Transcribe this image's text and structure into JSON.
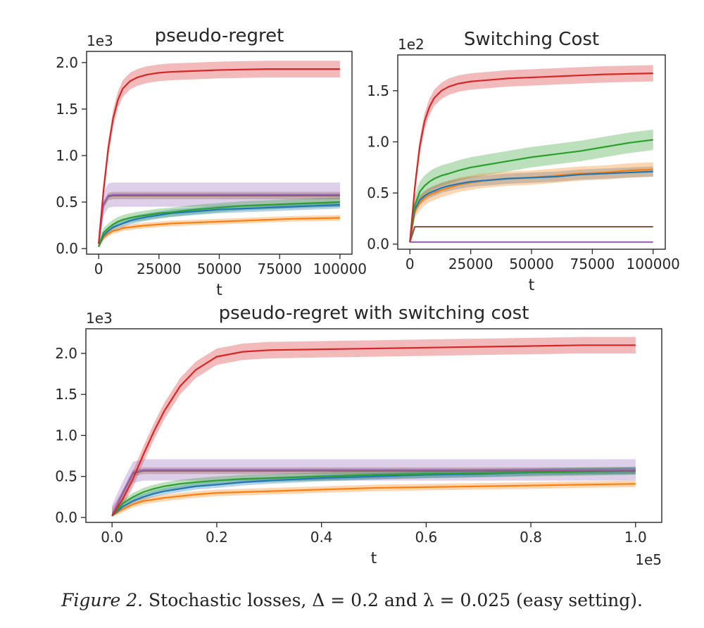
{
  "caption": {
    "figure_label": "Figure 2.",
    "text": "Stochastic losses, Δ = 0.2 and λ = 0.025 (easy setting)."
  },
  "colors": {
    "red": "#d62728",
    "purple": "#9467bd",
    "green": "#2ca02c",
    "blue": "#1f77b4",
    "orange": "#ff7f0e",
    "brown": "#8c564b",
    "frame": "#262626"
  },
  "chart_data": [
    {
      "id": "pseudo-regret",
      "type": "line",
      "title": "pseudo-regret",
      "xlabel": "t",
      "ylabel": "",
      "offset_text": "1e3",
      "xlim": [
        -5000,
        105000
      ],
      "ylim": [
        -0.06,
        2.12
      ],
      "xticks": [
        0,
        25000,
        50000,
        75000,
        100000
      ],
      "xtick_labels": [
        "0",
        "25000",
        "50000",
        "75000",
        "100000"
      ],
      "yticks": [
        0.0,
        0.5,
        1.0,
        1.5,
        2.0
      ],
      "ytick_labels": [
        "0.0",
        "0.5",
        "1.0",
        "1.5",
        "2.0"
      ],
      "grid": false,
      "x": [
        0,
        2000,
        4000,
        6000,
        8000,
        10000,
        13000,
        16000,
        20000,
        25000,
        30000,
        40000,
        50000,
        60000,
        70000,
        80000,
        90000,
        100000
      ],
      "series": [
        {
          "name": "red",
          "color": "red",
          "values": [
            0.05,
            0.62,
            1.08,
            1.4,
            1.6,
            1.72,
            1.8,
            1.84,
            1.87,
            1.89,
            1.9,
            1.91,
            1.92,
            1.925,
            1.93,
            1.93,
            1.93,
            1.93
          ],
          "band": 0.09
        },
        {
          "name": "purple",
          "color": "purple",
          "values": [
            0.05,
            0.48,
            0.57,
            0.58,
            0.58,
            0.58,
            0.58,
            0.58,
            0.58,
            0.58,
            0.58,
            0.58,
            0.58,
            0.58,
            0.58,
            0.58,
            0.58,
            0.58
          ],
          "band": 0.13
        },
        {
          "name": "brown",
          "color": "brown",
          "values": [
            0.05,
            0.47,
            0.56,
            0.57,
            0.57,
            0.57,
            0.57,
            0.57,
            0.57,
            0.57,
            0.57,
            0.57,
            0.57,
            0.57,
            0.57,
            0.57,
            0.57,
            0.57
          ],
          "band": 0.04
        },
        {
          "name": "green",
          "color": "green",
          "values": [
            0.02,
            0.17,
            0.22,
            0.26,
            0.29,
            0.31,
            0.33,
            0.345,
            0.36,
            0.38,
            0.39,
            0.42,
            0.44,
            0.46,
            0.47,
            0.48,
            0.49,
            0.5
          ],
          "band": 0.05
        },
        {
          "name": "blue",
          "color": "blue",
          "values": [
            0.02,
            0.14,
            0.19,
            0.23,
            0.25,
            0.27,
            0.3,
            0.32,
            0.34,
            0.36,
            0.38,
            0.4,
            0.42,
            0.43,
            0.44,
            0.45,
            0.46,
            0.47
          ],
          "band": 0.04
        },
        {
          "name": "orange",
          "color": "orange",
          "values": [
            0.02,
            0.12,
            0.16,
            0.19,
            0.2,
            0.22,
            0.23,
            0.24,
            0.25,
            0.26,
            0.27,
            0.28,
            0.29,
            0.3,
            0.31,
            0.32,
            0.325,
            0.33
          ],
          "band": 0.03
        }
      ]
    },
    {
      "id": "switching-cost",
      "type": "line",
      "title": "Switching Cost",
      "xlabel": "t",
      "ylabel": "",
      "offset_text": "1e2",
      "xlim": [
        -5000,
        105000
      ],
      "ylim": [
        -0.05,
        1.85
      ],
      "xticks": [
        0,
        25000,
        50000,
        75000,
        100000
      ],
      "xtick_labels": [
        "0",
        "25000",
        "50000",
        "75000",
        "100000"
      ],
      "yticks": [
        0.0,
        0.5,
        1.0,
        1.5
      ],
      "ytick_labels": [
        "0.0",
        "0.5",
        "1.0",
        "1.5"
      ],
      "grid": false,
      "x": [
        0,
        2000,
        4000,
        6000,
        8000,
        10000,
        13000,
        16000,
        20000,
        25000,
        30000,
        40000,
        50000,
        60000,
        70000,
        80000,
        90000,
        100000
      ],
      "series": [
        {
          "name": "red",
          "color": "red",
          "values": [
            0.02,
            0.55,
            0.95,
            1.2,
            1.34,
            1.43,
            1.5,
            1.54,
            1.57,
            1.59,
            1.6,
            1.62,
            1.63,
            1.64,
            1.65,
            1.66,
            1.665,
            1.67
          ],
          "band": 0.08
        },
        {
          "name": "green",
          "color": "green",
          "values": [
            0.02,
            0.38,
            0.51,
            0.57,
            0.61,
            0.64,
            0.67,
            0.69,
            0.72,
            0.75,
            0.77,
            0.81,
            0.85,
            0.88,
            0.91,
            0.95,
            0.99,
            1.02
          ],
          "band": 0.1
        },
        {
          "name": "blue",
          "color": "blue",
          "values": [
            0.02,
            0.34,
            0.43,
            0.47,
            0.5,
            0.52,
            0.55,
            0.57,
            0.59,
            0.61,
            0.62,
            0.64,
            0.65,
            0.66,
            0.68,
            0.69,
            0.7,
            0.71
          ],
          "band": 0.05
        },
        {
          "name": "orange",
          "color": "orange",
          "values": [
            0.02,
            0.32,
            0.4,
            0.45,
            0.48,
            0.5,
            0.53,
            0.55,
            0.58,
            0.6,
            0.62,
            0.64,
            0.65,
            0.67,
            0.69,
            0.7,
            0.72,
            0.73
          ],
          "band": 0.07
        },
        {
          "name": "brown",
          "color": "brown",
          "values": [
            0.02,
            0.17,
            0.17,
            0.17,
            0.17,
            0.17,
            0.17,
            0.17,
            0.17,
            0.17,
            0.17,
            0.17,
            0.17,
            0.17,
            0.17,
            0.17,
            0.17,
            0.17
          ],
          "band": 0.0
        },
        {
          "name": "purple",
          "color": "purple",
          "values": [
            0.02,
            0.02,
            0.02,
            0.02,
            0.02,
            0.02,
            0.02,
            0.02,
            0.02,
            0.02,
            0.02,
            0.02,
            0.02,
            0.02,
            0.02,
            0.02,
            0.02,
            0.02
          ],
          "band": 0.0
        }
      ]
    },
    {
      "id": "pseudo-regret-switching",
      "type": "line",
      "title": "pseudo-regret with switching cost",
      "xlabel": "t",
      "ylabel": "",
      "offset_text": "1e3",
      "x_offset_text": "1e5",
      "xlim": [
        -0.05,
        1.05
      ],
      "ylim": [
        -0.06,
        2.3
      ],
      "xticks": [
        0.0,
        0.2,
        0.4,
        0.6,
        0.8,
        1.0
      ],
      "xtick_labels": [
        "0.0",
        "0.2",
        "0.4",
        "0.6",
        "0.8",
        "1.0"
      ],
      "yticks": [
        0.0,
        0.5,
        1.0,
        1.5,
        2.0
      ],
      "ytick_labels": [
        "0.0",
        "0.5",
        "1.0",
        "1.5",
        "2.0"
      ],
      "grid": false,
      "x": [
        0,
        0.02,
        0.04,
        0.06,
        0.08,
        0.1,
        0.13,
        0.16,
        0.2,
        0.25,
        0.3,
        0.4,
        0.5,
        0.6,
        0.7,
        0.8,
        0.9,
        1.0
      ],
      "series": [
        {
          "name": "red",
          "color": "red",
          "values": [
            0.02,
            0.22,
            0.47,
            0.77,
            1.05,
            1.3,
            1.6,
            1.8,
            1.96,
            2.02,
            2.04,
            2.05,
            2.06,
            2.07,
            2.08,
            2.09,
            2.1,
            2.1
          ],
          "band": 0.1
        },
        {
          "name": "purple",
          "color": "purple",
          "values": [
            0.02,
            0.3,
            0.55,
            0.58,
            0.58,
            0.58,
            0.58,
            0.58,
            0.58,
            0.58,
            0.58,
            0.58,
            0.58,
            0.58,
            0.58,
            0.58,
            0.58,
            0.58
          ],
          "band": 0.13
        },
        {
          "name": "brown",
          "color": "brown",
          "values": [
            0.02,
            0.29,
            0.54,
            0.57,
            0.57,
            0.57,
            0.57,
            0.57,
            0.57,
            0.57,
            0.57,
            0.57,
            0.57,
            0.57,
            0.57,
            0.57,
            0.57,
            0.57
          ],
          "band": 0.04
        },
        {
          "name": "green",
          "color": "green",
          "values": [
            0.02,
            0.17,
            0.25,
            0.31,
            0.35,
            0.38,
            0.41,
            0.43,
            0.45,
            0.47,
            0.48,
            0.5,
            0.52,
            0.53,
            0.54,
            0.55,
            0.56,
            0.57
          ],
          "band": 0.05
        },
        {
          "name": "blue",
          "color": "blue",
          "values": [
            0.02,
            0.13,
            0.2,
            0.25,
            0.29,
            0.32,
            0.35,
            0.38,
            0.4,
            0.43,
            0.45,
            0.48,
            0.5,
            0.52,
            0.53,
            0.55,
            0.56,
            0.57
          ],
          "band": 0.04
        },
        {
          "name": "orange",
          "color": "orange",
          "values": [
            0.02,
            0.1,
            0.16,
            0.2,
            0.22,
            0.24,
            0.26,
            0.28,
            0.3,
            0.31,
            0.32,
            0.34,
            0.36,
            0.37,
            0.38,
            0.39,
            0.4,
            0.41
          ],
          "band": 0.04
        }
      ]
    }
  ]
}
